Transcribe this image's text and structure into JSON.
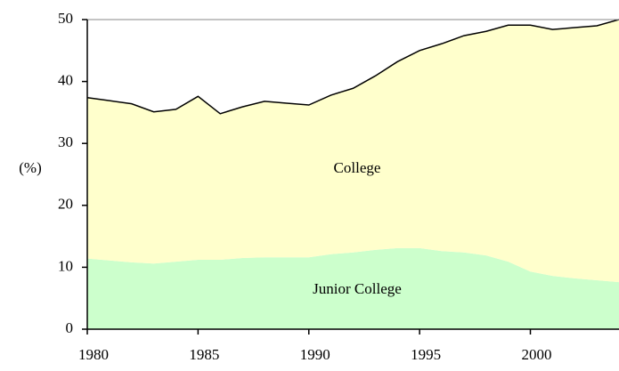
{
  "chart_data": {
    "type": "stacked-area",
    "y_label": "(%)",
    "x": [
      1980,
      1981,
      1982,
      1983,
      1984,
      1985,
      1986,
      1987,
      1988,
      1989,
      1990,
      1991,
      1992,
      1993,
      1994,
      1995,
      1996,
      1997,
      1998,
      1999,
      2000,
      2001,
      2002,
      2003,
      2004
    ],
    "series": [
      {
        "name": "Junior College",
        "color": "#ccffcc",
        "values": [
          11.4,
          11.1,
          10.8,
          10.6,
          10.9,
          11.2,
          11.2,
          11.5,
          11.6,
          11.6,
          11.6,
          12.1,
          12.4,
          12.8,
          13.1,
          13.1,
          12.6,
          12.4,
          11.9,
          10.9,
          9.3,
          8.6,
          8.2,
          7.9,
          7.6
        ]
      },
      {
        "name": "College",
        "color": "#ffffcc",
        "values": [
          26.0,
          25.8,
          25.6,
          24.5,
          24.6,
          26.4,
          23.6,
          24.4,
          25.2,
          24.9,
          24.6,
          25.7,
          26.5,
          28.1,
          30.1,
          31.9,
          33.5,
          35.0,
          36.2,
          38.2,
          39.8,
          39.8,
          40.5,
          41.1,
          42.4
        ]
      }
    ],
    "xlim": [
      1980,
      2004
    ],
    "xticks": [
      1980,
      1985,
      1990,
      1995,
      2000
    ],
    "ylim": [
      0,
      50
    ],
    "yticks": [
      0,
      10,
      20,
      30,
      40,
      50
    ]
  }
}
